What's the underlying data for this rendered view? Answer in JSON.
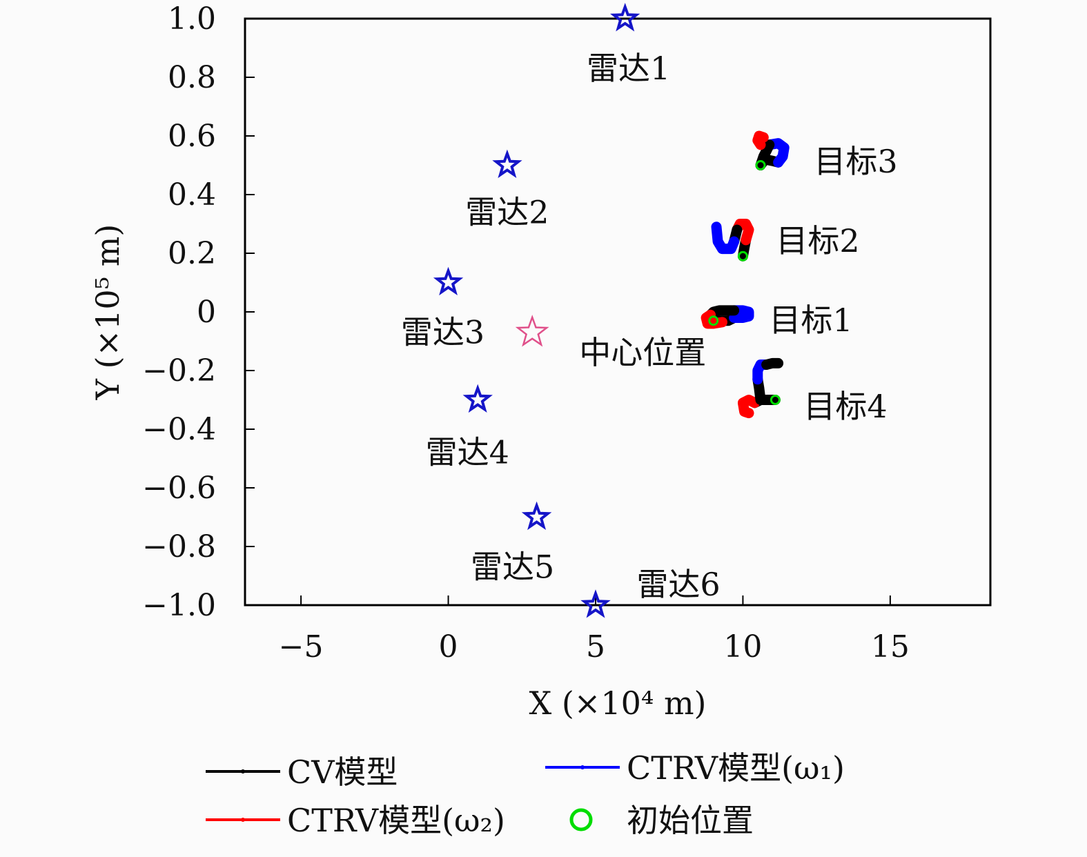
{
  "chart_data": {
    "type": "scatter",
    "xlabel": "X (×10⁴ m)",
    "ylabel": "Y (×10⁵ m)",
    "xlim": [
      -6.9,
      18.4
    ],
    "ylim": [
      -1.0,
      1.0
    ],
    "x_ticks": [
      -5,
      0,
      5,
      10,
      15
    ],
    "x_tick_labels": [
      "−5",
      "0",
      "5",
      "10",
      "15"
    ],
    "y_ticks": [
      1.0,
      0.8,
      0.6,
      0.4,
      0.2,
      0,
      -0.2,
      -0.4,
      -0.6,
      -0.8,
      -1.0
    ],
    "y_tick_labels": [
      "1.0",
      "0.8",
      "0.6",
      "0.4",
      "0.2",
      "0",
      "−0.2",
      "−0.4",
      "−0.6",
      "−0.8",
      "−1.0"
    ],
    "radars": [
      {
        "label": "雷达1",
        "x": 6,
        "y": 1.0
      },
      {
        "label": "雷达2",
        "x": 2,
        "y": 0.5
      },
      {
        "label": "雷达3",
        "x": 0,
        "y": 0.1
      },
      {
        "label": "雷达4",
        "x": 1,
        "y": -0.3
      },
      {
        "label": "雷达5",
        "x": 3,
        "y": -0.7
      },
      {
        "label": "雷达6",
        "x": 5,
        "y": -1.0
      }
    ],
    "center": {
      "label": "中心位置",
      "x": 2.85,
      "y": -0.07
    },
    "targets": [
      {
        "label": "目标1",
        "start": [
          9.0,
          -0.03
        ],
        "segments": [
          {
            "model": "cv",
            "points": [
              [
                9.0,
                -0.03
              ],
              [
                9.3,
                -0.03
              ],
              [
                9.5,
                -0.03
              ],
              [
                9.7,
                -0.02
              ]
            ]
          },
          {
            "model": "w1",
            "points": [
              [
                9.7,
                -0.02
              ],
              [
                10.0,
                -0.02
              ],
              [
                10.2,
                -0.015
              ],
              [
                10.2,
                0
              ],
              [
                10.0,
                0.005
              ],
              [
                9.7,
                0.005
              ]
            ]
          },
          {
            "model": "cv",
            "points": [
              [
                9.7,
                0.005
              ],
              [
                9.2,
                0.005
              ],
              [
                9.0,
                0.0
              ],
              [
                8.9,
                -0.01
              ]
            ]
          },
          {
            "model": "w2",
            "points": [
              [
                8.9,
                -0.01
              ],
              [
                8.75,
                -0.02
              ],
              [
                8.8,
                -0.04
              ],
              [
                9.0,
                -0.04
              ],
              [
                9.3,
                -0.035
              ]
            ]
          }
        ]
      },
      {
        "label": "目标2",
        "start": [
          10.0,
          0.19
        ],
        "segments": [
          {
            "model": "cv",
            "points": [
              [
                10.0,
                0.19
              ],
              [
                10.05,
                0.22
              ],
              [
                10.1,
                0.245
              ]
            ]
          },
          {
            "model": "w2",
            "points": [
              [
                10.1,
                0.245
              ],
              [
                10.2,
                0.28
              ],
              [
                10.1,
                0.3
              ],
              [
                9.9,
                0.3
              ],
              [
                9.8,
                0.28
              ]
            ]
          },
          {
            "model": "cv",
            "points": [
              [
                9.8,
                0.28
              ],
              [
                9.75,
                0.26
              ],
              [
                9.7,
                0.24
              ]
            ]
          },
          {
            "model": "w1",
            "points": [
              [
                9.7,
                0.24
              ],
              [
                9.6,
                0.215
              ],
              [
                9.3,
                0.215
              ],
              [
                9.15,
                0.24
              ],
              [
                9.1,
                0.29
              ]
            ]
          }
        ]
      },
      {
        "label": "目标3",
        "start": [
          10.6,
          0.5
        ],
        "segments": [
          {
            "model": "cv",
            "points": [
              [
                10.6,
                0.5
              ],
              [
                10.75,
                0.52
              ],
              [
                11.0,
                0.515
              ],
              [
                11.2,
                0.51
              ]
            ]
          },
          {
            "model": "w1",
            "points": [
              [
                11.2,
                0.51
              ],
              [
                11.35,
                0.53
              ],
              [
                11.4,
                0.56
              ],
              [
                11.2,
                0.575
              ],
              [
                10.9,
                0.57
              ]
            ]
          },
          {
            "model": "cv",
            "points": [
              [
                10.9,
                0.57
              ],
              [
                10.8,
                0.55
              ],
              [
                10.7,
                0.53
              ],
              [
                10.6,
                0.5
              ]
            ]
          },
          {
            "model": "w2",
            "points": [
              [
                10.6,
                0.57
              ],
              [
                10.5,
                0.585
              ],
              [
                10.55,
                0.6
              ],
              [
                10.7,
                0.595
              ]
            ]
          }
        ]
      },
      {
        "label": "目标4",
        "start": [
          11.1,
          -0.3
        ],
        "segments": [
          {
            "model": "cv",
            "points": [
              [
                11.1,
                -0.3
              ],
              [
                10.8,
                -0.3
              ],
              [
                10.6,
                -0.3
              ],
              [
                10.4,
                -0.31
              ]
            ]
          },
          {
            "model": "w2",
            "points": [
              [
                10.4,
                -0.31
              ],
              [
                10.2,
                -0.3
              ],
              [
                10.0,
                -0.31
              ],
              [
                10.05,
                -0.34
              ],
              [
                10.2,
                -0.345
              ]
            ]
          },
          {
            "model": "cv",
            "points": [
              [
                10.6,
                -0.3
              ],
              [
                10.55,
                -0.26
              ],
              [
                10.5,
                -0.23
              ]
            ]
          },
          {
            "model": "w1",
            "points": [
              [
                10.5,
                -0.23
              ],
              [
                10.5,
                -0.2
              ],
              [
                10.6,
                -0.18
              ],
              [
                10.8,
                -0.18
              ]
            ]
          },
          {
            "model": "cv",
            "points": [
              [
                10.8,
                -0.18
              ],
              [
                11.0,
                -0.175
              ],
              [
                11.2,
                -0.175
              ]
            ]
          }
        ]
      }
    ],
    "legend": [
      {
        "key": "cv",
        "label": "CV模型",
        "color": "#000000",
        "marker": "line"
      },
      {
        "key": "w1",
        "label": "CTRV模型(ω₁)",
        "color": "#0000ff",
        "marker": "line"
      },
      {
        "key": "w2",
        "label": "CTRV模型(ω₂)",
        "color": "#ff0000",
        "marker": "line"
      },
      {
        "key": "start",
        "label": "初始位置",
        "color": "#00dd00",
        "marker": "circle"
      }
    ],
    "colors": {
      "radar": "#1515c8",
      "center": "#e0508a",
      "cv": "#000000",
      "w1": "#0000ff",
      "w2": "#ff0000",
      "start": "#00dd00"
    }
  }
}
